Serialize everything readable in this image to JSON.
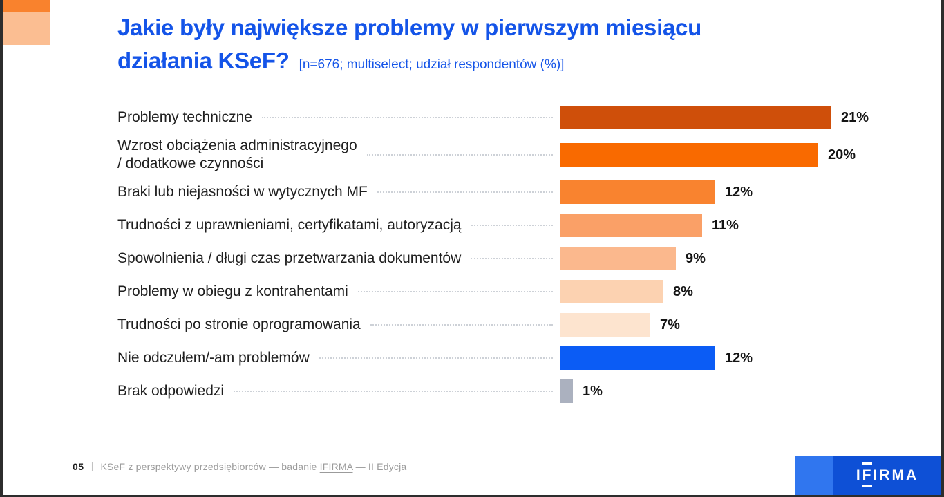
{
  "decor": {
    "square_top_color": "#f9822d",
    "square_bottom_color": "#fbbe92",
    "frame_color": "#2d2d2d"
  },
  "header": {
    "title_line1": "Jakie były największe problemy w pierwszym miesiącu",
    "title_line2": "działania KSeF?",
    "subtitle": "[n=676; multiselect; udział respondentów (%)]",
    "title_color": "#1454e8"
  },
  "chart_data": {
    "type": "bar",
    "orientation": "horizontal",
    "title": "Jakie były największe problemy w pierwszym miesiącu działania KSeF?",
    "note": "n=676; multiselect; udział respondentów (%)",
    "unit": "%",
    "xlim": [
      0,
      21
    ],
    "grid": false,
    "categories": [
      "Problemy techniczne",
      "Wzrost obciążenia administracyjnego\n/ dodatkowe czynności",
      "Braki lub niejasności w wytycznych MF",
      "Trudności z uprawnieniami, certyfikatami, autoryzacją",
      "Spowolnienia / długi czas przetwarzania dokumentów",
      "Problemy w obiegu z kontrahentami",
      "Trudności po stronie oprogramowania",
      "Nie odczułem/-am problemów",
      "Brak odpowiedzi"
    ],
    "values": [
      21,
      20,
      12,
      11,
      9,
      8,
      7,
      12,
      1
    ],
    "value_labels": [
      "21%",
      "20%",
      "12%",
      "11%",
      "9%",
      "8%",
      "7%",
      "12%",
      "1%"
    ],
    "bar_colors": [
      "#cf4f0a",
      "#f96a00",
      "#f9832f",
      "#faa067",
      "#fbb88d",
      "#fcd2b1",
      "#fde4cf",
      "#0b5cf5",
      "#abb1bf"
    ]
  },
  "footer": {
    "page_number": "05",
    "divider": "|",
    "text_before_link": "KSeF z perspektywy przedsiębiorców — badanie ",
    "link_text": "IFIRMA",
    "text_after_link": " — II Edycja"
  },
  "logo": {
    "letter_i": "I",
    "letter_f": "F",
    "letters_rest": "IRMA",
    "accent_color": "#3076ef",
    "main_color": "#0e50d6"
  }
}
